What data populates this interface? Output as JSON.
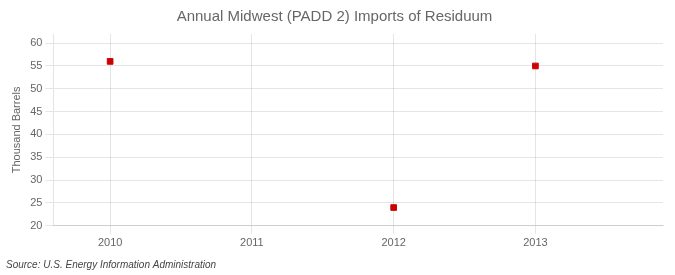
{
  "chart_data": {
    "type": "scatter",
    "title": "Annual Midwest (PADD 2) Imports of Residuum",
    "ylabel": "Thousand Barrels",
    "annotation": "Source: U.S. Energy Information Administration",
    "x": [
      2010,
      2012,
      2013
    ],
    "values": [
      56,
      24,
      55
    ],
    "color": "#cc0000",
    "marker": "square",
    "xlim": [
      2009.6,
      2013.9
    ],
    "ylim": [
      20,
      62
    ],
    "xticks": [
      2010,
      2011,
      2012,
      2013
    ],
    "yticks": [
      20,
      25,
      30,
      35,
      40,
      45,
      50,
      55,
      60
    ],
    "grid": true
  }
}
